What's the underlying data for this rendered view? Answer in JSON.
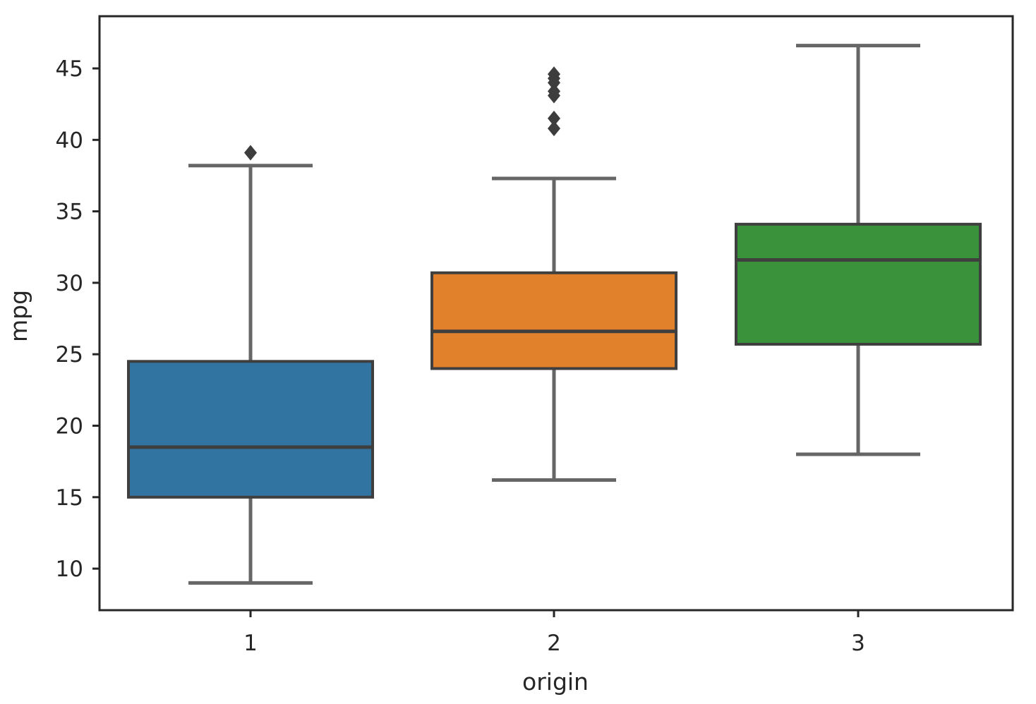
{
  "chart_data": {
    "type": "box",
    "title": "",
    "xlabel": "origin",
    "ylabel": "mpg",
    "categories": [
      "1",
      "2",
      "3"
    ],
    "ylim": [
      7,
      48.5
    ],
    "yticks": [
      10,
      15,
      20,
      25,
      30,
      35,
      40,
      45
    ],
    "grid": false,
    "legend": null,
    "series": [
      {
        "name": "1",
        "color": "#3274a1",
        "whisker_low": 9.0,
        "q1": 15.0,
        "median": 18.5,
        "q3": 24.5,
        "whisker_high": 38.2,
        "outliers": [
          39.1
        ]
      },
      {
        "name": "2",
        "color": "#e1812c",
        "whisker_low": 16.2,
        "q1": 24.0,
        "median": 26.6,
        "q3": 30.7,
        "whisker_high": 37.3,
        "outliers": [
          40.8,
          41.5,
          43.1,
          43.4,
          44.0,
          44.3,
          44.6
        ]
      },
      {
        "name": "3",
        "color": "#3a923a",
        "whisker_low": 18.0,
        "q1": 25.7,
        "median": 31.6,
        "q3": 34.1,
        "whisker_high": 46.6,
        "outliers": []
      }
    ]
  },
  "style": {
    "edge_color": "#3f3f3f",
    "whisker_color": "#666666",
    "frame_color": "#262626"
  }
}
